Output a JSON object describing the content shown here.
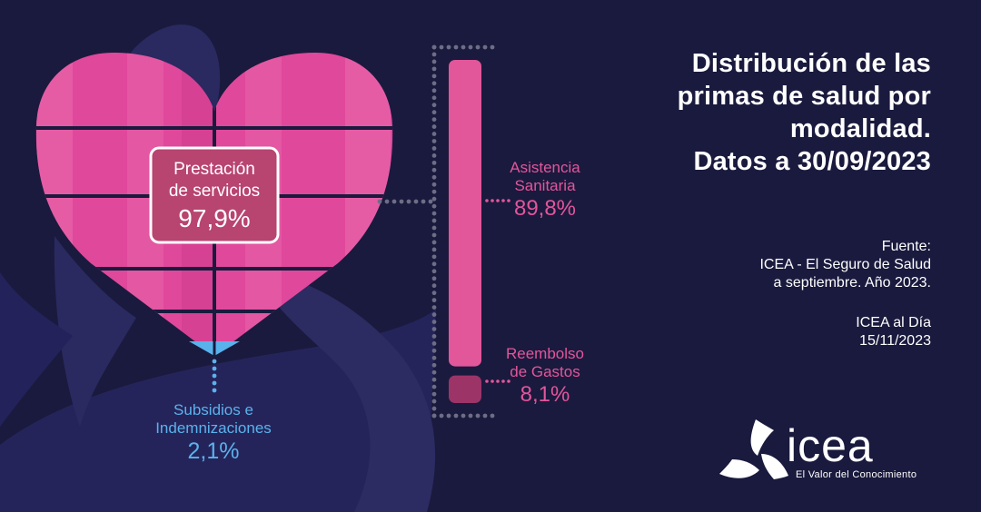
{
  "header": {
    "title_lines": [
      "Distribución de las",
      "primas de salud por",
      "modalidad.",
      "Datos a 30/09/2023"
    ]
  },
  "source": {
    "lines": [
      "Fuente:",
      "ICEA - El Seguro de Salud",
      "a septiembre. Año 2023."
    ]
  },
  "publication": {
    "lines": [
      "ICEA al Día",
      "15/11/2023"
    ]
  },
  "logo": {
    "icon": "icea-triskelion-icon",
    "name": "icea",
    "tagline": "El Valor del Conocimiento"
  },
  "colors": {
    "background": "#1a1a3e",
    "heart_pink": "#e0489c",
    "heart_light": "#e86aab",
    "heart_dark": "#cc3a8a",
    "bar_pink": "#e2569a",
    "bar_dark": "#9c3468",
    "subsidy_blue": "#5ab2ec",
    "box_fill": "#b84470",
    "dots": "#6d6d86"
  },
  "chart_data": {
    "type": "bar",
    "title": "Distribución de las primas de salud por modalidad. Datos a 30/09/2023",
    "unit": "%",
    "categories": [
      {
        "name_lines": [
          "Prestación",
          "de servicios"
        ],
        "value": 97.9,
        "value_label": "97,9%",
        "subcategories": [
          {
            "name_lines": [
              "Asistencia",
              "Sanitaria"
            ],
            "value": 89.8,
            "value_label": "89,8%"
          },
          {
            "name_lines": [
              "Reembolso",
              "de Gastos"
            ],
            "value": 8.1,
            "value_label": "8,1%"
          }
        ]
      },
      {
        "name_lines": [
          "Subsidios e",
          "Indemnizaciones"
        ],
        "value": 2.1,
        "value_label": "2,1%"
      }
    ]
  }
}
